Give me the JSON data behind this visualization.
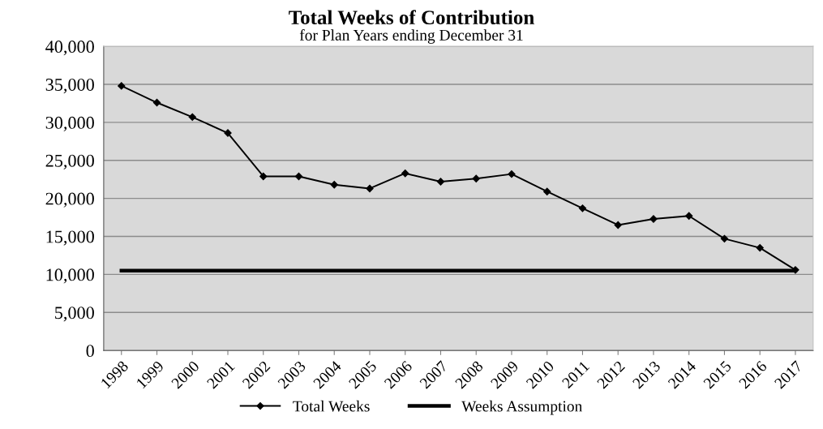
{
  "chart_data": {
    "type": "line",
    "title": "Total Weeks of Contribution",
    "subtitle": "for Plan Years ending December 31",
    "categories": [
      "1998",
      "1999",
      "2000",
      "2001",
      "2002",
      "2003",
      "2004",
      "2005",
      "2006",
      "2007",
      "2008",
      "2009",
      "2010",
      "2011",
      "2012",
      "2013",
      "2014",
      "2015",
      "2016",
      "2017"
    ],
    "series": [
      {
        "name": "Total Weeks",
        "color": "#000000",
        "marker": "diamond",
        "line_style": "solid",
        "values": [
          34800,
          32600,
          30700,
          28600,
          22900,
          22900,
          21800,
          21300,
          23300,
          22200,
          22600,
          23200,
          20900,
          18700,
          16500,
          17300,
          17700,
          14700,
          13500,
          10600
        ]
      },
      {
        "name": "Weeks Assumption",
        "color": "#000000",
        "marker": "none",
        "line_style": "solid",
        "values": [
          10500,
          10500,
          10500,
          10500,
          10500,
          10500,
          10500,
          10500,
          10500,
          10500,
          10500,
          10500,
          10500,
          10500,
          10500,
          10500,
          10500,
          10500,
          10500,
          10500
        ]
      }
    ],
    "ylim": [
      0,
      40000
    ],
    "yticks": [
      0,
      {
        "value": 5000,
        "label": "5,000"
      },
      {
        "value": 10000,
        "label": "10,000"
      },
      {
        "value": 15000,
        "label": "15,000"
      },
      {
        "value": 20000,
        "label": "20,000"
      },
      {
        "value": 25000,
        "label": "25,000"
      },
      {
        "value": 30000,
        "label": "30,000"
      },
      {
        "value": 35000,
        "label": "35,000"
      },
      {
        "value": 40000,
        "label": "40,000"
      }
    ],
    "grid": "y",
    "legend": "bottom"
  }
}
